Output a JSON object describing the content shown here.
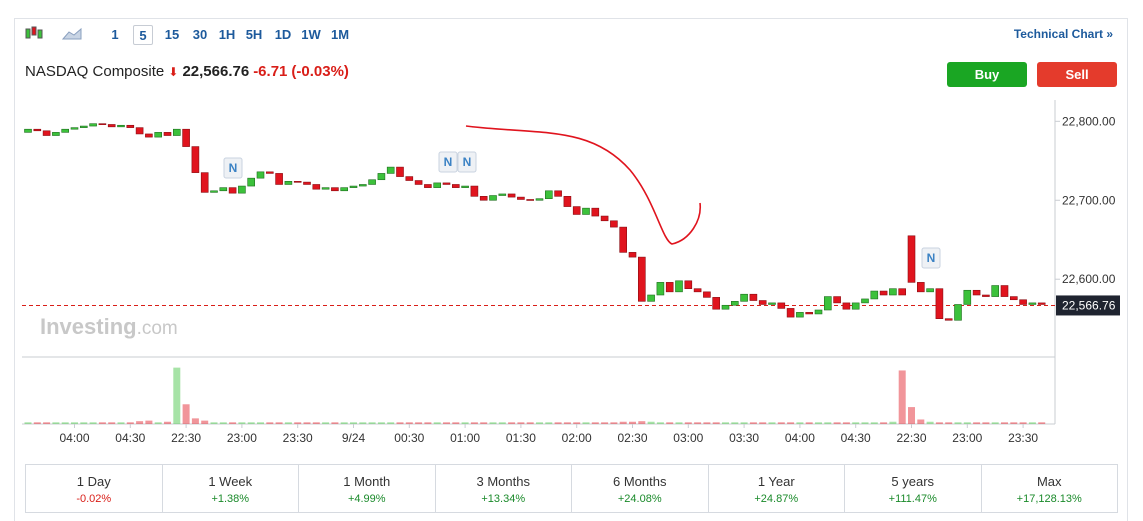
{
  "toolbar": {
    "intervals": [
      "1",
      "5",
      "15",
      "30",
      "1H",
      "5H",
      "1D",
      "1W",
      "1M"
    ],
    "active_interval": "5",
    "link": "Technical Chart »"
  },
  "quote": {
    "name": "NASDAQ Composite",
    "price": "22,566.76",
    "change": "-6.71",
    "change_percent": "(-0.03%)"
  },
  "buttons": {
    "buy": "Buy",
    "sell": "Sell"
  },
  "watermark": {
    "brand": "Investing",
    "suffix": ".com"
  },
  "news_markers": [
    "N",
    "N",
    "N",
    "N"
  ],
  "chart_data": {
    "type": "candlestick",
    "ylim": [
      22504,
      22827
    ],
    "yticks": [
      {
        "value": 22800,
        "label": "22,800.00"
      },
      {
        "value": 22700,
        "label": "22,700.00"
      },
      {
        "value": 22600,
        "label": "22,600.00"
      }
    ],
    "last_price": {
      "value": 22566.76,
      "label": "22,566.76"
    },
    "x_labels": [
      "04:00",
      "04:30",
      "22:30",
      "23:00",
      "23:30",
      "9/24",
      "00:30",
      "01:00",
      "01:30",
      "02:00",
      "02:30",
      "03:00",
      "03:30",
      "04:00",
      "04:30",
      "22:30",
      "23:00",
      "23:30"
    ],
    "up_color": "#3cc13b",
    "down_color": "#e0141e",
    "candles": [
      [
        22786,
        22790
      ],
      [
        22790,
        22788
      ],
      [
        22788,
        22782
      ],
      [
        22782,
        22786
      ],
      [
        22786,
        22790
      ],
      [
        22790,
        22792
      ],
      [
        22792,
        22794
      ],
      [
        22794,
        22797
      ],
      [
        22797,
        22796
      ],
      [
        22796,
        22793
      ],
      [
        22793,
        22795
      ],
      [
        22795,
        22792
      ],
      [
        22792,
        22784
      ],
      [
        22784,
        22780
      ],
      [
        22780,
        22786
      ],
      [
        22786,
        22782
      ],
      [
        22782,
        22790
      ],
      [
        22790,
        22768
      ],
      [
        22768,
        22735
      ],
      [
        22735,
        22710
      ],
      [
        22710,
        22712
      ],
      [
        22712,
        22716
      ],
      [
        22716,
        22709
      ],
      [
        22709,
        22718
      ],
      [
        22718,
        22728
      ],
      [
        22728,
        22736
      ],
      [
        22736,
        22734
      ],
      [
        22734,
        22720
      ],
      [
        22720,
        22724
      ],
      [
        22724,
        22723
      ],
      [
        22723,
        22720
      ],
      [
        22720,
        22714
      ],
      [
        22714,
        22716
      ],
      [
        22716,
        22712
      ],
      [
        22712,
        22716
      ],
      [
        22716,
        22718
      ],
      [
        22718,
        22720
      ],
      [
        22720,
        22726
      ],
      [
        22726,
        22734
      ],
      [
        22734,
        22742
      ],
      [
        22742,
        22730
      ],
      [
        22730,
        22725
      ],
      [
        22725,
        22720
      ],
      [
        22720,
        22716
      ],
      [
        22716,
        22722
      ],
      [
        22722,
        22720
      ],
      [
        22720,
        22716
      ],
      [
        22716,
        22718
      ],
      [
        22718,
        22705
      ],
      [
        22705,
        22700
      ],
      [
        22700,
        22706
      ],
      [
        22706,
        22708
      ],
      [
        22708,
        22704
      ],
      [
        22704,
        22701
      ],
      [
        22701,
        22700
      ],
      [
        22700,
        22702
      ],
      [
        22702,
        22712
      ],
      [
        22712,
        22705
      ],
      [
        22705,
        22692
      ],
      [
        22692,
        22682
      ],
      [
        22682,
        22690
      ],
      [
        22690,
        22680
      ],
      [
        22680,
        22674
      ],
      [
        22674,
        22666
      ],
      [
        22666,
        22634
      ],
      [
        22634,
        22628
      ],
      [
        22628,
        22572
      ],
      [
        22572,
        22580
      ],
      [
        22580,
        22596
      ],
      [
        22596,
        22584
      ],
      [
        22584,
        22598
      ],
      [
        22598,
        22588
      ],
      [
        22588,
        22584
      ],
      [
        22584,
        22577
      ],
      [
        22577,
        22562
      ],
      [
        22562,
        22567
      ],
      [
        22567,
        22572
      ],
      [
        22572,
        22581
      ],
      [
        22581,
        22573
      ],
      [
        22573,
        22568
      ],
      [
        22568,
        22570
      ],
      [
        22570,
        22563
      ],
      [
        22563,
        22552
      ],
      [
        22552,
        22558
      ],
      [
        22558,
        22556
      ],
      [
        22556,
        22561
      ],
      [
        22561,
        22578
      ],
      [
        22578,
        22570
      ],
      [
        22570,
        22562
      ],
      [
        22562,
        22570
      ],
      [
        22570,
        22575
      ],
      [
        22575,
        22585
      ],
      [
        22585,
        22580
      ],
      [
        22580,
        22588
      ],
      [
        22588,
        22580
      ],
      [
        22655,
        22596
      ],
      [
        22596,
        22584
      ],
      [
        22584,
        22588
      ],
      [
        22588,
        22550
      ],
      [
        22550,
        22548
      ],
      [
        22548,
        22568
      ],
      [
        22568,
        22586
      ],
      [
        22586,
        22580
      ],
      [
        22580,
        22578
      ],
      [
        22578,
        22592
      ],
      [
        22592,
        22578
      ],
      [
        22578,
        22574
      ],
      [
        22574,
        22568
      ],
      [
        22568,
        22570
      ],
      [
        22570,
        22568
      ]
    ],
    "volume_ylim": [
      0,
      110
    ],
    "volumes": [
      3,
      3,
      3,
      3,
      3,
      3,
      3,
      3,
      3,
      3,
      3,
      3,
      5,
      6,
      3,
      4,
      100,
      35,
      10,
      6,
      3,
      3,
      3,
      3,
      3,
      3,
      3,
      3,
      3,
      3,
      3,
      3,
      3,
      3,
      3,
      3,
      3,
      3,
      3,
      3,
      3,
      3,
      3,
      3,
      3,
      3,
      3,
      3,
      3,
      3,
      3,
      3,
      3,
      3,
      3,
      3,
      3,
      3,
      3,
      3,
      3,
      3,
      3,
      3,
      4,
      4,
      5,
      4,
      3,
      3,
      3,
      3,
      3,
      3,
      3,
      3,
      3,
      3,
      3,
      3,
      3,
      3,
      3,
      3,
      3,
      3,
      3,
      3,
      3,
      3,
      3,
      3,
      3,
      4,
      95,
      30,
      8,
      4,
      3,
      3,
      3,
      3,
      3,
      3,
      3,
      3,
      3,
      3,
      3,
      3
    ]
  },
  "performance": [
    {
      "period": "1 Day",
      "change": "-0.02%"
    },
    {
      "period": "1 Week",
      "change": "+1.38%"
    },
    {
      "period": "1 Month",
      "change": "+4.99%"
    },
    {
      "period": "3 Months",
      "change": "+13.34%"
    },
    {
      "period": "6 Months",
      "change": "+24.08%"
    },
    {
      "period": "1 Year",
      "change": "+24.87%"
    },
    {
      "period": "5 years",
      "change": "+111.47%"
    },
    {
      "period": "Max",
      "change": "+17,128.13%"
    }
  ]
}
